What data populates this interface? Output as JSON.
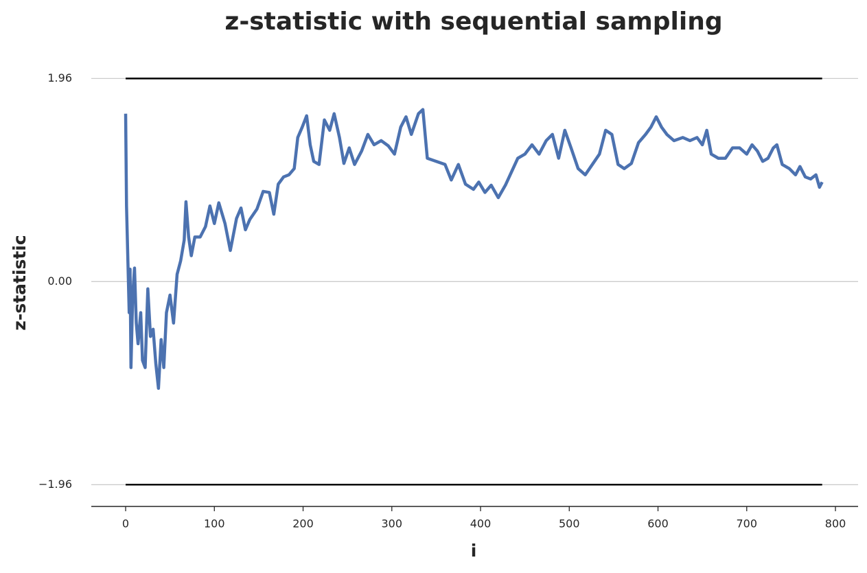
{
  "chart_data": {
    "type": "line",
    "title": "z-statistic with sequential sampling",
    "xlabel": "i",
    "ylabel": "z-statistic",
    "xlim": [
      -38.7,
      825.5
    ],
    "ylim": [
      -2.17,
      2.3
    ],
    "xticks": [
      0,
      100,
      200,
      300,
      400,
      500,
      600,
      700,
      800
    ],
    "yticks": [
      {
        "value": -1.96,
        "label": "−1.96"
      },
      {
        "value": 0,
        "label": "0.00"
      },
      1.96
    ],
    "grid": true,
    "hlines": [
      {
        "y": 1.96,
        "xmin": 0,
        "xmax": 785,
        "color": "#000000"
      },
      {
        "y": -1.96,
        "xmin": 0,
        "xmax": 785,
        "color": "#000000"
      }
    ],
    "series": [
      {
        "color": "#4c72b0",
        "x": [
          0,
          1,
          4,
          5,
          6,
          8,
          10,
          12,
          14,
          17,
          19,
          22,
          25,
          28,
          31,
          34,
          37,
          40,
          43,
          46,
          50,
          54,
          58,
          62,
          66,
          68,
          71,
          74,
          78,
          84,
          90,
          95,
          100,
          105,
          112,
          118,
          125,
          130,
          135,
          140,
          148,
          155,
          162,
          167,
          172,
          178,
          184,
          190,
          194,
          199,
          204,
          208,
          212,
          218,
          224,
          230,
          235,
          241,
          246,
          252,
          258,
          266,
          273,
          280,
          288,
          296,
          303,
          310,
          316,
          322,
          330,
          335,
          340,
          350,
          360,
          367,
          375,
          383,
          392,
          398,
          405,
          412,
          420,
          428,
          435,
          442,
          450,
          458,
          466,
          474,
          481,
          488,
          495,
          502,
          510,
          518,
          526,
          534,
          541,
          548,
          555,
          562,
          570,
          578,
          586,
          592,
          598,
          604,
          610,
          618,
          628,
          636,
          644,
          650,
          655,
          660,
          668,
          676,
          684,
          692,
          700,
          706,
          712,
          718,
          724,
          730,
          734,
          740,
          748,
          755,
          760,
          766,
          772,
          778,
          782,
          785
        ],
        "values": [
          1.62,
          0.73,
          -0.3,
          0.12,
          -0.83,
          -0.13,
          0.13,
          -0.4,
          -0.6,
          -0.3,
          -0.76,
          -0.83,
          -0.07,
          -0.53,
          -0.46,
          -0.79,
          -1.03,
          -0.56,
          -0.83,
          -0.3,
          -0.13,
          -0.4,
          0.07,
          0.2,
          0.4,
          0.77,
          0.43,
          0.25,
          0.43,
          0.43,
          0.53,
          0.73,
          0.56,
          0.76,
          0.56,
          0.3,
          0.61,
          0.71,
          0.5,
          0.6,
          0.7,
          0.87,
          0.86,
          0.65,
          0.94,
          1.01,
          1.03,
          1.09,
          1.39,
          1.49,
          1.6,
          1.32,
          1.16,
          1.13,
          1.56,
          1.46,
          1.62,
          1.39,
          1.14,
          1.29,
          1.13,
          1.26,
          1.42,
          1.32,
          1.36,
          1.31,
          1.23,
          1.49,
          1.59,
          1.42,
          1.62,
          1.66,
          1.19,
          1.16,
          1.13,
          0.98,
          1.13,
          0.94,
          0.89,
          0.96,
          0.86,
          0.93,
          0.81,
          0.93,
          1.06,
          1.19,
          1.23,
          1.32,
          1.23,
          1.36,
          1.42,
          1.19,
          1.46,
          1.29,
          1.09,
          1.03,
          1.13,
          1.23,
          1.46,
          1.42,
          1.13,
          1.09,
          1.14,
          1.34,
          1.42,
          1.49,
          1.59,
          1.49,
          1.42,
          1.36,
          1.39,
          1.36,
          1.39,
          1.32,
          1.46,
          1.23,
          1.19,
          1.19,
          1.29,
          1.29,
          1.23,
          1.32,
          1.26,
          1.16,
          1.19,
          1.29,
          1.32,
          1.13,
          1.09,
          1.03,
          1.11,
          1.01,
          0.99,
          1.03,
          0.91,
          0.96
        ]
      }
    ]
  }
}
